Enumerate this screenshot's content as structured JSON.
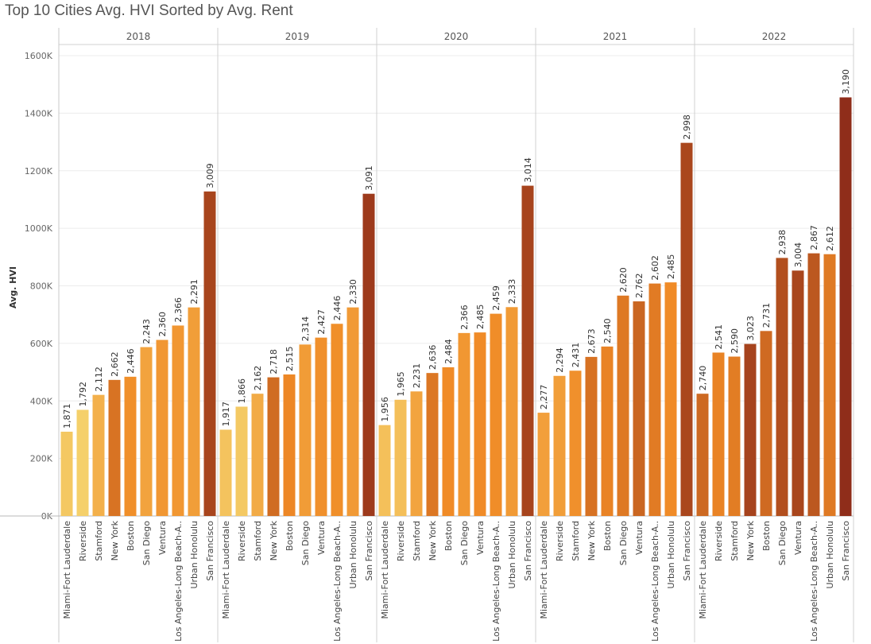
{
  "title": "Top 10 Cities Avg. HVI Sorted by Avg. Rent",
  "chart_data": {
    "type": "bar",
    "title": "Top 10 Cities Avg. HVI Sorted by Avg. Rent",
    "ylabel": "Avg. HVI",
    "xlabel": "",
    "ylim": [
      0,
      1600000
    ],
    "yticks": [
      0,
      200000,
      400000,
      600000,
      800000,
      1000000,
      1200000,
      1400000,
      1600000
    ],
    "ytick_labels": [
      "0K",
      "200K",
      "400K",
      "600K",
      "800K",
      "1000K",
      "1200K",
      "1400K",
      "1600K"
    ],
    "grid": true,
    "color_scale": {
      "low": "#f5d06a",
      "mid": "#f08a26",
      "high": "#8f2d1a"
    },
    "panels": [
      {
        "year": "2018",
        "categories": [
          "Miami-Fort Lauderdale",
          "Riverside",
          "Stamford",
          "New York",
          "Boston",
          "San Diego",
          "Ventura",
          "Los Angeles-Long Beach-A..",
          "Urban Honolulu",
          "San Francisco"
        ],
        "values": [
          293000,
          369000,
          421000,
          473000,
          484000,
          587000,
          612000,
          662000,
          725000,
          1128000
        ],
        "labels": [
          "1,871",
          "1,792",
          "2,112",
          "2,662",
          "2,446",
          "2,243",
          "2,360",
          "2,366",
          "2,291",
          "3,009"
        ],
        "rent": [
          1871,
          1792,
          2112,
          2662,
          2446,
          2243,
          2360,
          2366,
          2291,
          3009
        ]
      },
      {
        "year": "2019",
        "categories": [
          "Miami-Fort Lauderdale",
          "Riverside",
          "Stamford",
          "New York",
          "Boston",
          "San Diego",
          "Ventura",
          "Los Angeles-Long Beach-A..",
          "Urban Honolulu",
          "San Francisco"
        ],
        "values": [
          300000,
          380000,
          425000,
          482000,
          492000,
          596000,
          620000,
          668000,
          725000,
          1120000
        ],
        "labels": [
          "1,917",
          "1,866",
          "2,162",
          "2,718",
          "2,515",
          "2,314",
          "2,427",
          "2,446",
          "2,330",
          "3,091"
        ],
        "rent": [
          1917,
          1866,
          2162,
          2718,
          2515,
          2314,
          2427,
          2446,
          2330,
          3091
        ]
      },
      {
        "year": "2020",
        "categories": [
          "Miami-Fort Lauderdale",
          "Riverside",
          "Stamford",
          "New York",
          "Boston",
          "San Diego",
          "Ventura",
          "Los Angeles-Long Beach-A..",
          "Urban Honolulu",
          "San Francisco"
        ],
        "values": [
          316000,
          404000,
          433000,
          497000,
          517000,
          636000,
          638000,
          703000,
          726000,
          1148000
        ],
        "labels": [
          "1,956",
          "1,965",
          "2,231",
          "2,636",
          "2,484",
          "2,366",
          "2,485",
          "2,459",
          "2,333",
          "3,014"
        ],
        "rent": [
          1956,
          1965,
          2231,
          2636,
          2484,
          2366,
          2485,
          2459,
          2333,
          3014
        ]
      },
      {
        "year": "2021",
        "categories": [
          "Miami-Fort Lauderdale",
          "Riverside",
          "Stamford",
          "New York",
          "Boston",
          "San Diego",
          "Ventura",
          "Los Angeles-Long Beach-A..",
          "Urban Honolulu",
          "San Francisco"
        ],
        "values": [
          359000,
          487000,
          505000,
          553000,
          589000,
          766000,
          746000,
          808000,
          812000,
          1297000
        ],
        "labels": [
          "2,277",
          "2,294",
          "2,431",
          "2,673",
          "2,540",
          "2,620",
          "2,762",
          "2,602",
          "2,485",
          "2,998"
        ],
        "rent": [
          2277,
          2294,
          2431,
          2673,
          2540,
          2620,
          2762,
          2602,
          2485,
          2998
        ]
      },
      {
        "year": "2022",
        "categories": [
          "Miami-Fort Lauderdale",
          "Riverside",
          "Stamford",
          "New York",
          "Boston",
          "San Diego",
          "Ventura",
          "Los Angeles-Long Beach-A..",
          "Urban Honolulu",
          "San Francisco"
        ],
        "values": [
          425000,
          568000,
          554000,
          598000,
          643000,
          897000,
          853000,
          913000,
          910000,
          1455000
        ],
        "labels": [
          "2,740",
          "2,541",
          "2,590",
          "3,023",
          "2,731",
          "2,938",
          "3,004",
          "2,867",
          "2,612",
          "3,190"
        ],
        "rent": [
          2740,
          2541,
          2590,
          3023,
          2731,
          2938,
          3004,
          2867,
          2612,
          3190
        ]
      }
    ]
  }
}
